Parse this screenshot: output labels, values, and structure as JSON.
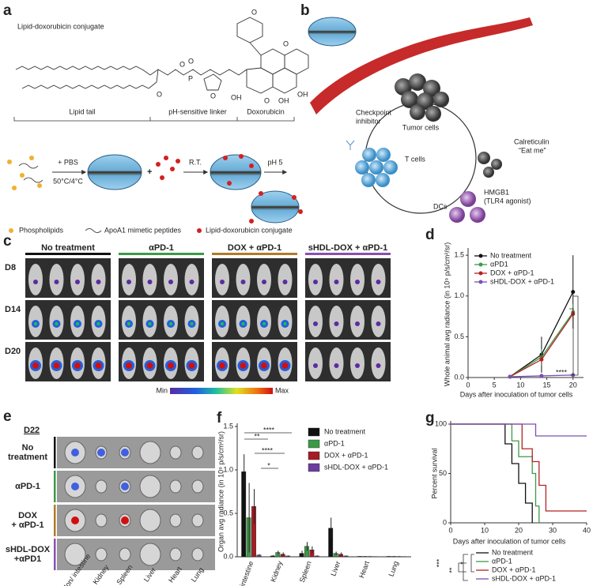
{
  "panel_a": {
    "label": "a",
    "title": "Lipid-doxorubicin conjugate",
    "segments": [
      "Lipid tail",
      "pH-sensitive linker",
      "Doxorubicin"
    ],
    "atoms": [
      "O",
      "O",
      "P",
      "O",
      "O",
      "OH",
      "O",
      "OH",
      "OH",
      "O",
      "O"
    ],
    "step1": [
      "+ PBS",
      "50°C/4°C"
    ],
    "step2": "R.T.",
    "step3": "pH 5",
    "legend": [
      "Phospholipids",
      "ApoA1 mimetic peptides",
      "Lipid-doxorubicin conjugate"
    ]
  },
  "panel_b": {
    "label": "b",
    "checkpoint": [
      "Checkpoint",
      "inhibitor"
    ],
    "tumor": "Tumor cells",
    "calreticulin": [
      "Calreticulin",
      "“Eat me”"
    ],
    "t_cells": "T cells",
    "hmgb1": [
      "HMGB1",
      "(TLR4 agonist)"
    ],
    "dcs": "DCs"
  },
  "panel_c": {
    "label": "c",
    "groups": [
      "No treatment",
      "αPD-1",
      "DOX + αPD-1",
      "sHDL-DOX + αPD-1"
    ],
    "days": [
      "D8",
      "D14",
      "D20"
    ],
    "scale": [
      "Min",
      "Max"
    ]
  },
  "panel_e": {
    "label": "e",
    "day": "D22",
    "rows": [
      [
        "No",
        "treatment"
      ],
      [
        "αPD-1"
      ],
      [
        "DOX",
        "+ αPD-1"
      ],
      [
        "sHDL-DOX",
        "+αPD1"
      ]
    ],
    "organs": [
      "Colon/ intestine",
      "Kidney",
      "Spleen",
      "Liver",
      "Heart",
      "Lung"
    ]
  },
  "chart_data": [
    {
      "type": "line",
      "label": "d",
      "x": [
        8,
        14,
        20
      ],
      "series": [
        {
          "name": "No treatment",
          "color": "#111111",
          "values": [
            0.01,
            0.28,
            1.05
          ],
          "errors": [
            0.01,
            0.22,
            0.45
          ]
        },
        {
          "name": "αPD1",
          "color": "#3c9a46",
          "values": [
            0.01,
            0.25,
            0.8
          ],
          "errors": [
            0.01,
            0.1,
            0.1
          ]
        },
        {
          "name": "DOX + αPD-1",
          "color": "#b22222",
          "values": [
            0.01,
            0.22,
            0.78
          ],
          "errors": [
            0.01,
            0.06,
            0.08
          ]
        },
        {
          "name": "sHDL-DOX + αPD-1",
          "color": "#7b4fb5",
          "values": [
            0.01,
            0.02,
            0.03
          ],
          "errors": [
            0.005,
            0.01,
            0.01
          ]
        }
      ],
      "xlim": [
        0,
        22
      ],
      "xticks": [
        0,
        5,
        10,
        15,
        20
      ],
      "ylim": [
        0,
        1.55
      ],
      "yticks": [
        {
          "value": 0,
          "label": "0.0"
        },
        0.5,
        {
          "value": 1,
          "label": "1.0"
        },
        1.5
      ],
      "xlabel": "Days after inoculation of tumor cells",
      "ylabel": "Whole animal avg radiance (in 10⁹ p/s/cm²/sr)",
      "annotations": [
        "****"
      ]
    },
    {
      "type": "bar",
      "label": "f",
      "categories": [
        "Colon/ intestine",
        "Kidney",
        "Spleen",
        "Liver",
        "Heart",
        "Lung"
      ],
      "series": [
        {
          "name": "No treatment",
          "color": "#111111",
          "values": [
            0.98,
            0.01,
            0.04,
            0.33,
            0.005,
            0.005
          ],
          "errors": [
            0.2,
            0.01,
            0.03,
            0.12,
            0.003,
            0.003
          ]
        },
        {
          "name": "αPD-1",
          "color": "#3c9a46",
          "values": [
            0.45,
            0.05,
            0.12,
            0.04,
            0.005,
            0.005
          ],
          "errors": [
            0.4,
            0.02,
            0.05,
            0.02,
            0.003,
            0.003
          ]
        },
        {
          "name": "DOX + αPD-1",
          "color": "#a51c24",
          "values": [
            0.58,
            0.03,
            0.08,
            0.03,
            0.004,
            0.004
          ],
          "errors": [
            0.2,
            0.02,
            0.04,
            0.02,
            0.003,
            0.003
          ]
        },
        {
          "name": "sHDL-DOX + αPD-1",
          "color": "#6a3fa0",
          "values": [
            0.02,
            0.01,
            0.01,
            0.01,
            0.003,
            0.003
          ],
          "errors": [
            0.01,
            0.005,
            0.005,
            0.005,
            0.002,
            0.002
          ]
        }
      ],
      "ylim": [
        0,
        1.5
      ],
      "yticks": [
        {
          "value": 0,
          "label": "0.0"
        },
        0.5,
        {
          "value": 1,
          "label": "1.0"
        },
        1.5
      ],
      "ylabel": "Organ avg radiance (in 10⁹ p/s/cm²/sr)",
      "annotations": [
        "****",
        "**",
        "****",
        "*"
      ]
    },
    {
      "type": "line",
      "label": "g",
      "series": [
        {
          "name": "No treatment",
          "color": "#111111",
          "x": [
            0,
            16,
            16,
            18,
            18,
            20,
            20,
            22,
            22,
            24,
            24
          ],
          "values": [
            100,
            100,
            80,
            80,
            60,
            60,
            40,
            40,
            20,
            20,
            0
          ]
        },
        {
          "name": "αPD-1",
          "color": "#3c9a46",
          "x": [
            0,
            18,
            18,
            20,
            20,
            24,
            24,
            25,
            25,
            26,
            26
          ],
          "values": [
            100,
            100,
            83,
            83,
            67,
            67,
            50,
            50,
            17,
            17,
            0
          ]
        },
        {
          "name": "DOX + αPD-1",
          "color": "#b22222",
          "x": [
            0,
            21,
            21,
            24,
            24,
            26,
            26,
            28,
            28,
            40
          ],
          "values": [
            100,
            100,
            75,
            75,
            62,
            62,
            38,
            38,
            12,
            12
          ]
        },
        {
          "name": "sHDL-DOX + αPD-1",
          "color": "#7b4fb5",
          "x": [
            0,
            25,
            25,
            40
          ],
          "values": [
            100,
            100,
            88,
            88
          ]
        }
      ],
      "xlim": [
        0,
        40
      ],
      "xticks": [
        0,
        10,
        20,
        30,
        40
      ],
      "ylim": [
        0,
        100
      ],
      "yticks": [
        0,
        50,
        100
      ],
      "xlabel": "Days after inoculation of tumor cells",
      "ylabel": "Percent survival",
      "annotations": [
        "***",
        "**",
        "*"
      ]
    }
  ]
}
